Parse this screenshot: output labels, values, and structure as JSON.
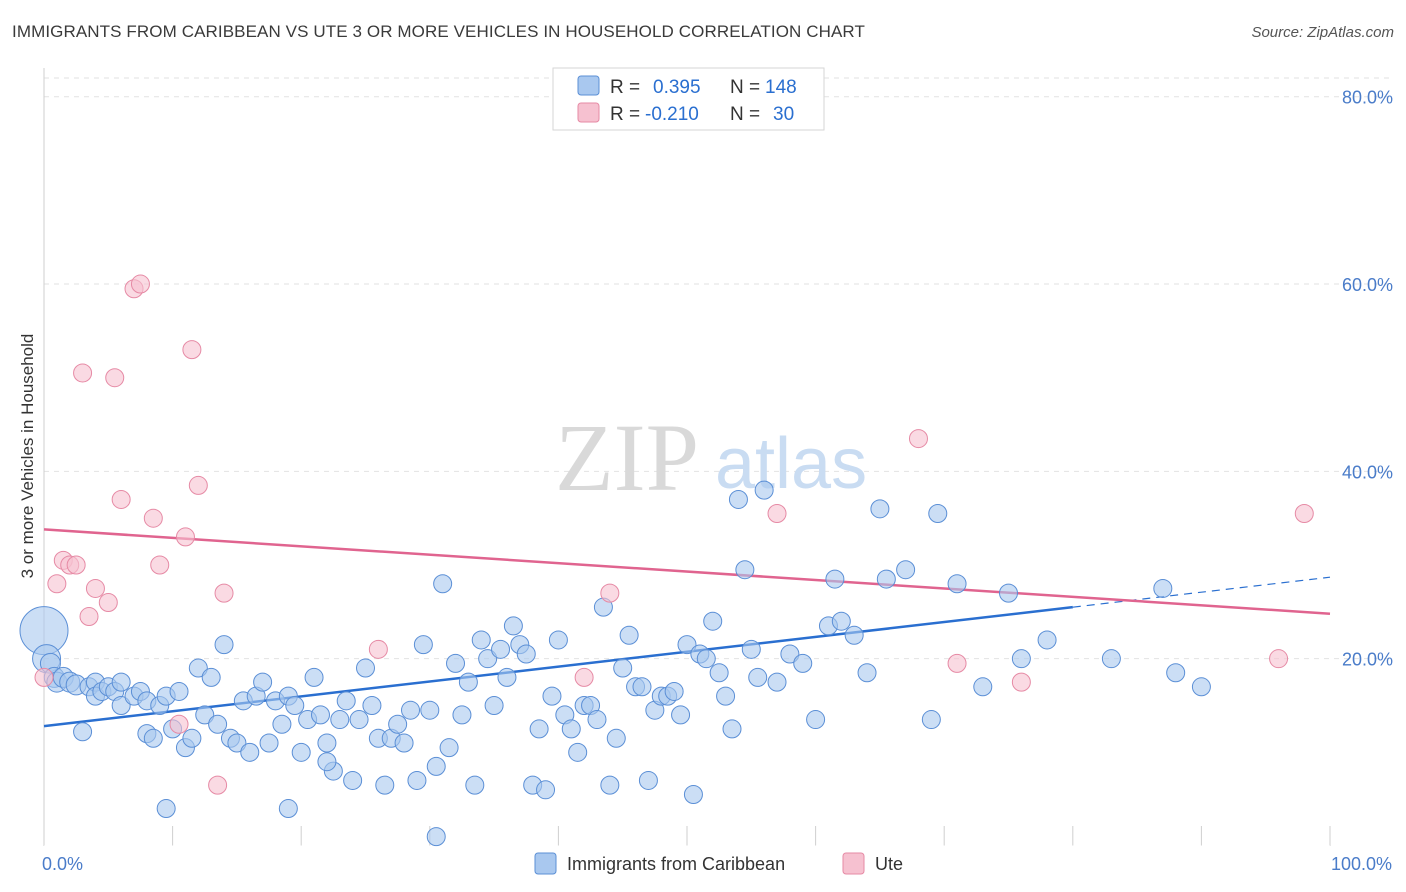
{
  "title": "IMMIGRANTS FROM CARIBBEAN VS UTE 3 OR MORE VEHICLES IN HOUSEHOLD CORRELATION CHART",
  "source": "Source: ZipAtlas.com",
  "watermark": {
    "zip": "ZIP",
    "atlas": "atlas"
  },
  "legend": {
    "r_label": "R =",
    "n_label": "N =",
    "rows": [
      {
        "r": "0.395",
        "n": "148"
      },
      {
        "r": "-0.210",
        "n": "30"
      }
    ]
  },
  "colors": {
    "blue_fill": "#a9c8ef",
    "blue_stroke": "#5b8fd6",
    "blue_line": "#2a6fd0",
    "pink_fill": "#f6c1d0",
    "pink_stroke": "#e68aa5",
    "pink_line": "#e0648f",
    "tick_text": "#4a7cc9",
    "grid": "#e2e2e2"
  },
  "chart_data": {
    "type": "scatter",
    "title": "IMMIGRANTS FROM CARIBBEAN VS UTE 3 OR MORE VEHICLES IN HOUSEHOLD CORRELATION CHART",
    "xlabel": "",
    "ylabel": "3 or more Vehicles in Household",
    "xlim": [
      0,
      100
    ],
    "ylim": [
      0,
      82
    ],
    "x_tick_labels": [
      "0.0%",
      "100.0%"
    ],
    "y_ticks": [
      20,
      40,
      60,
      80
    ],
    "y_tick_labels": [
      "20.0%",
      "40.0%",
      "60.0%",
      "80.0%"
    ],
    "grid": true,
    "legend_placement": "top-center",
    "series": [
      {
        "name": "Immigrants from Caribbean",
        "color": "#a9c8ef",
        "trend": {
          "x": [
            0,
            80,
            100
          ],
          "y": [
            12.8,
            25.5,
            28.7
          ],
          "solid_to": 80
        },
        "points": [
          [
            0.0,
            23.0,
            24
          ],
          [
            0.2,
            20.0,
            14
          ],
          [
            0.5,
            19.5,
            10
          ],
          [
            0.8,
            18.0,
            10
          ],
          [
            1.0,
            17.5,
            10
          ],
          [
            1.5,
            18.0,
            10
          ],
          [
            2.0,
            17.5,
            10
          ],
          [
            2.5,
            17.2,
            10
          ],
          [
            3.0,
            12.2,
            9
          ],
          [
            3.5,
            17.0,
            9
          ],
          [
            4.0,
            17.5,
            9
          ],
          [
            4.0,
            16.0,
            9
          ],
          [
            4.5,
            16.5,
            9
          ],
          [
            5.0,
            17.0,
            9
          ],
          [
            5.5,
            16.5,
            9
          ],
          [
            6.0,
            17.5,
            9
          ],
          [
            6.0,
            15.0,
            9
          ],
          [
            7.0,
            16.0,
            9
          ],
          [
            7.5,
            16.5,
            9
          ],
          [
            8.0,
            15.5,
            9
          ],
          [
            8.0,
            12.0,
            9
          ],
          [
            8.5,
            11.5,
            9
          ],
          [
            9.0,
            15.0,
            9
          ],
          [
            9.5,
            16.0,
            9
          ],
          [
            10.0,
            12.5,
            9
          ],
          [
            10.5,
            16.5,
            9
          ],
          [
            11.0,
            10.5,
            9
          ],
          [
            11.5,
            11.5,
            9
          ],
          [
            12.0,
            19.0,
            9
          ],
          [
            12.5,
            14.0,
            9
          ],
          [
            13.0,
            18.0,
            9
          ],
          [
            13.5,
            13.0,
            9
          ],
          [
            14.0,
            21.5,
            9
          ],
          [
            14.5,
            11.5,
            9
          ],
          [
            15.0,
            11.0,
            9
          ],
          [
            15.5,
            15.5,
            9
          ],
          [
            16.0,
            10.0,
            9
          ],
          [
            16.5,
            16.0,
            9
          ],
          [
            17.0,
            17.5,
            9
          ],
          [
            17.5,
            11.0,
            9
          ],
          [
            18.0,
            15.5,
            9
          ],
          [
            18.5,
            13.0,
            9
          ],
          [
            19.0,
            16.0,
            9
          ],
          [
            19.5,
            15.0,
            9
          ],
          [
            20.0,
            10.0,
            9
          ],
          [
            20.5,
            13.5,
            9
          ],
          [
            21.0,
            18.0,
            9
          ],
          [
            21.5,
            14.0,
            9
          ],
          [
            22.0,
            11.0,
            9
          ],
          [
            22.5,
            8.0,
            9
          ],
          [
            23.0,
            13.5,
            9
          ],
          [
            23.5,
            15.5,
            9
          ],
          [
            24.0,
            7.0,
            9
          ],
          [
            24.5,
            13.5,
            9
          ],
          [
            25.0,
            19.0,
            9
          ],
          [
            25.5,
            15.0,
            9
          ],
          [
            26.0,
            11.5,
            9
          ],
          [
            26.5,
            6.5,
            9
          ],
          [
            27.0,
            11.5,
            9
          ],
          [
            27.5,
            13.0,
            9
          ],
          [
            28.0,
            11.0,
            9
          ],
          [
            28.5,
            14.5,
            9
          ],
          [
            29.0,
            7.0,
            9
          ],
          [
            29.5,
            21.5,
            9
          ],
          [
            30.0,
            14.5,
            9
          ],
          [
            30.5,
            8.5,
            9
          ],
          [
            31.0,
            28.0,
            9
          ],
          [
            31.5,
            10.5,
            9
          ],
          [
            32.0,
            19.5,
            9
          ],
          [
            32.5,
            14.0,
            9
          ],
          [
            33.0,
            17.5,
            9
          ],
          [
            33.5,
            6.5,
            9
          ],
          [
            34.0,
            22.0,
            9
          ],
          [
            34.5,
            20.0,
            9
          ],
          [
            35.0,
            15.0,
            9
          ],
          [
            35.5,
            21.0,
            9
          ],
          [
            36.0,
            18.0,
            9
          ],
          [
            36.5,
            23.5,
            9
          ],
          [
            37.0,
            21.5,
            9
          ],
          [
            37.5,
            20.5,
            9
          ],
          [
            38.0,
            6.5,
            9
          ],
          [
            38.5,
            12.5,
            9
          ],
          [
            39.0,
            6.0,
            9
          ],
          [
            39.5,
            16.0,
            9
          ],
          [
            40.0,
            22.0,
            9
          ],
          [
            40.5,
            14.0,
            9
          ],
          [
            41.0,
            12.5,
            9
          ],
          [
            41.5,
            10.0,
            9
          ],
          [
            42.0,
            15.0,
            9
          ],
          [
            42.5,
            15.0,
            9
          ],
          [
            43.0,
            13.5,
            9
          ],
          [
            43.5,
            25.5,
            9
          ],
          [
            44.0,
            6.5,
            9
          ],
          [
            44.5,
            11.5,
            9
          ],
          [
            45.0,
            19.0,
            9
          ],
          [
            45.5,
            22.5,
            9
          ],
          [
            46.0,
            17.0,
            9
          ],
          [
            46.5,
            17.0,
            9
          ],
          [
            47.0,
            7.0,
            9
          ],
          [
            47.5,
            14.5,
            9
          ],
          [
            48.0,
            16.0,
            9
          ],
          [
            48.5,
            16.0,
            9
          ],
          [
            49.0,
            16.5,
            9
          ],
          [
            49.5,
            14.0,
            9
          ],
          [
            50.0,
            21.5,
            9
          ],
          [
            50.5,
            5.5,
            9
          ],
          [
            51.0,
            20.5,
            9
          ],
          [
            51.5,
            20.0,
            9
          ],
          [
            52.0,
            24.0,
            9
          ],
          [
            52.5,
            18.5,
            9
          ],
          [
            53.0,
            16.0,
            9
          ],
          [
            53.5,
            12.5,
            9
          ],
          [
            54.0,
            37.0,
            9
          ],
          [
            54.5,
            29.5,
            9
          ],
          [
            55.0,
            21.0,
            9
          ],
          [
            55.5,
            18.0,
            9
          ],
          [
            56.0,
            38.0,
            9
          ],
          [
            57.0,
            17.5,
            9
          ],
          [
            58.0,
            20.5,
            9
          ],
          [
            59.0,
            19.5,
            9
          ],
          [
            60.0,
            13.5,
            9
          ],
          [
            61.0,
            23.5,
            9
          ],
          [
            61.5,
            28.5,
            9
          ],
          [
            62.0,
            24.0,
            9
          ],
          [
            63.0,
            22.5,
            9
          ],
          [
            64.0,
            18.5,
            9
          ],
          [
            65.0,
            36.0,
            9
          ],
          [
            65.5,
            28.5,
            9
          ],
          [
            67.0,
            29.5,
            9
          ],
          [
            69.0,
            13.5,
            9
          ],
          [
            69.5,
            35.5,
            9
          ],
          [
            71.0,
            28.0,
            9
          ],
          [
            73.0,
            17.0,
            9
          ],
          [
            75.0,
            27.0,
            9
          ],
          [
            76.0,
            20.0,
            9
          ],
          [
            78.0,
            22.0,
            9
          ],
          [
            83.0,
            20.0,
            9
          ],
          [
            87.0,
            27.5,
            9
          ],
          [
            88.0,
            18.5,
            9
          ],
          [
            90.0,
            17.0,
            9
          ],
          [
            30.5,
            1.0,
            9
          ],
          [
            19.0,
            4.0,
            9
          ],
          [
            9.5,
            4.0,
            9
          ],
          [
            22.0,
            9.0,
            9
          ]
        ]
      },
      {
        "name": "Ute",
        "color": "#f6c1d0",
        "trend": {
          "x": [
            0,
            100
          ],
          "y": [
            33.8,
            24.8
          ]
        },
        "points": [
          [
            0.0,
            18.0,
            9
          ],
          [
            1.0,
            28.0,
            9
          ],
          [
            1.5,
            30.5,
            9
          ],
          [
            2.0,
            30.0,
            9
          ],
          [
            2.5,
            30.0,
            9
          ],
          [
            3.0,
            50.5,
            9
          ],
          [
            3.5,
            24.5,
            9
          ],
          [
            4.0,
            27.5,
            9
          ],
          [
            5.0,
            26.0,
            9
          ],
          [
            5.5,
            50.0,
            9
          ],
          [
            6.0,
            37.0,
            9
          ],
          [
            7.0,
            59.5,
            9
          ],
          [
            7.5,
            60.0,
            9
          ],
          [
            8.5,
            35.0,
            9
          ],
          [
            9.0,
            30.0,
            9
          ],
          [
            10.5,
            13.0,
            9
          ],
          [
            11.0,
            33.0,
            9
          ],
          [
            11.5,
            53.0,
            9
          ],
          [
            12.0,
            38.5,
            9
          ],
          [
            13.5,
            6.5,
            9
          ],
          [
            14.0,
            27.0,
            9
          ],
          [
            26.0,
            21.0,
            9
          ],
          [
            42.0,
            18.0,
            9
          ],
          [
            44.0,
            27.0,
            9
          ],
          [
            57.0,
            35.5,
            9
          ],
          [
            68.0,
            43.5,
            9
          ],
          [
            71.0,
            19.5,
            9
          ],
          [
            76.0,
            17.5,
            9
          ],
          [
            96.0,
            20.0,
            9
          ],
          [
            98.0,
            35.5,
            9
          ]
        ]
      }
    ]
  }
}
